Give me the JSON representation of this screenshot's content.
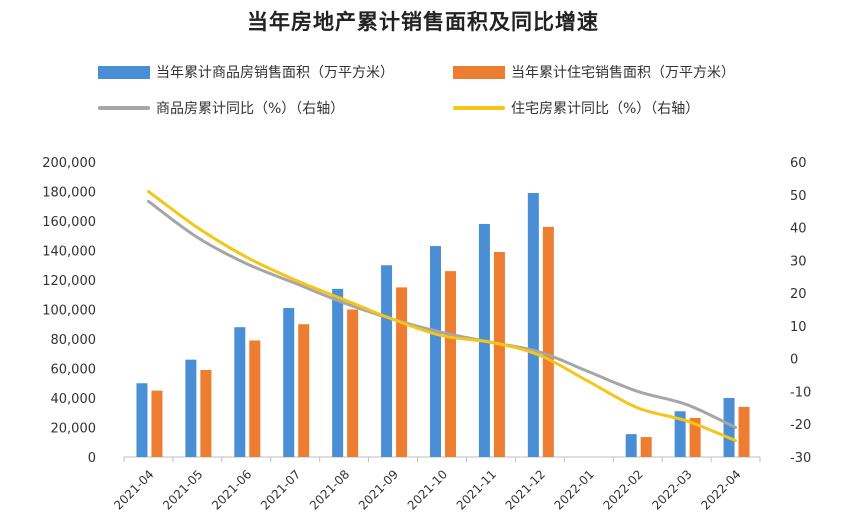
{
  "chart_data": {
    "type": "bar",
    "title": "当年房地产累计销售面积及同比增速",
    "categories": [
      "2021-04",
      "2021-05",
      "2021-06",
      "2021-07",
      "2021-08",
      "2021-09",
      "2021-10",
      "2021-11",
      "2021-12",
      "2022-01",
      "2022-02",
      "2022-03",
      "2022-04"
    ],
    "series": [
      {
        "name": "当年累计商品房销售面积（万平方米）",
        "kind": "bar",
        "axis": "left",
        "color": "#4a8fd6",
        "values": [
          50000,
          66000,
          88000,
          101000,
          114000,
          130000,
          143000,
          158000,
          179000,
          null,
          15500,
          31000,
          40000
        ]
      },
      {
        "name": "当年累计住宅销售面积（万平方米）",
        "kind": "bar",
        "axis": "left",
        "color": "#ed7d31",
        "values": [
          45000,
          59000,
          79000,
          90000,
          100000,
          115000,
          126000,
          139000,
          156000,
          null,
          13500,
          26500,
          34000
        ]
      },
      {
        "name": "商品房累计同比（%）（右轴）",
        "kind": "line",
        "axis": "right",
        "color": "#a6a6a6",
        "values": [
          48,
          37,
          29,
          23,
          17,
          12,
          8,
          5,
          2,
          -4,
          -10,
          -14,
          -21
        ]
      },
      {
        "name": "住宅房累计同比（%）（右轴）",
        "kind": "line",
        "axis": "right",
        "color": "#f5c518",
        "values": [
          51,
          40,
          31,
          24,
          18,
          12,
          7,
          5,
          1,
          -7,
          -15,
          -19,
          -25
        ]
      }
    ],
    "yleft": {
      "min": 0,
      "max": 200000,
      "ticks": [
        "0",
        "20,000",
        "40,000",
        "60,000",
        "80,000",
        "100,000",
        "120,000",
        "140,000",
        "160,000",
        "180,000",
        "200,000"
      ]
    },
    "yright": {
      "min": -30,
      "max": 60,
      "ticks": [
        "-30",
        "-20",
        "-10",
        "0",
        "10",
        "20",
        "30",
        "40",
        "50",
        "60"
      ]
    },
    "legend_position": "top",
    "grid": false
  }
}
